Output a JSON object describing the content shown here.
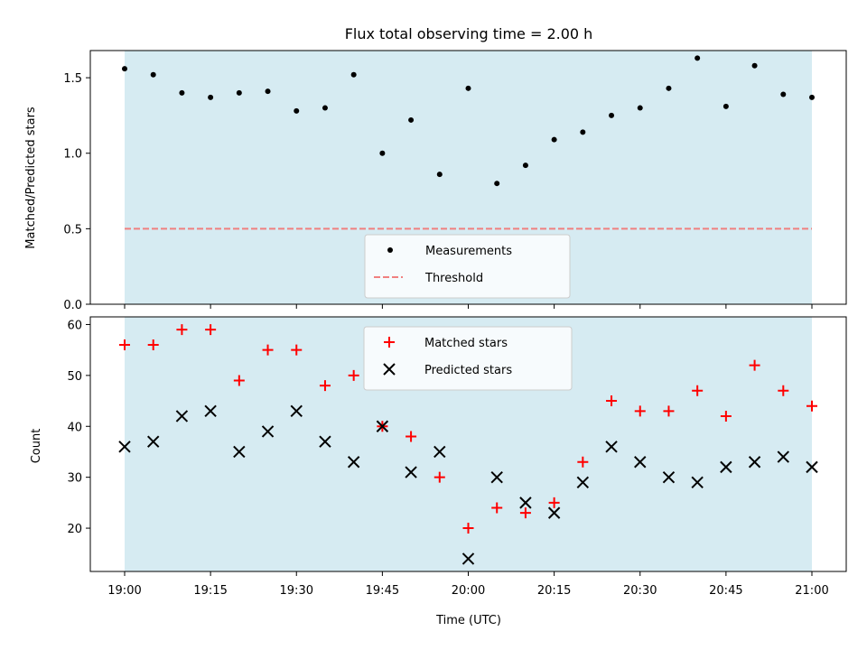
{
  "chart_data": [
    {
      "type": "scatter",
      "title": "Flux total observing time = 2.00 h",
      "xlabel": "",
      "ylabel": "Matched/Predicted stars",
      "ylim": [
        0.0,
        1.68
      ],
      "yticks": [
        "0.0",
        "0.5",
        "1.0",
        "1.5"
      ],
      "ytick_values": [
        0.0,
        0.5,
        1.0,
        1.5
      ],
      "x": [
        "19:00",
        "19:05",
        "19:10",
        "19:15",
        "19:20",
        "19:25",
        "19:30",
        "19:35",
        "19:40",
        "19:45",
        "19:50",
        "19:55",
        "20:00",
        "20:05",
        "20:10",
        "20:15",
        "20:20",
        "20:25",
        "20:30",
        "20:35",
        "20:40",
        "20:45",
        "20:50",
        "20:55",
        "21:00"
      ],
      "series": [
        {
          "name": "Measurements",
          "marker": "dot",
          "color": "#000000",
          "values": [
            1.56,
            1.52,
            1.4,
            1.37,
            1.4,
            1.41,
            1.28,
            1.3,
            1.52,
            1.0,
            1.22,
            0.86,
            1.43,
            0.8,
            0.92,
            1.09,
            1.14,
            1.25,
            1.3,
            1.43,
            1.63,
            1.31,
            1.58,
            1.39,
            1.37
          ]
        }
      ],
      "threshold": {
        "name": "Threshold",
        "value": 0.5,
        "color": "#f08080",
        "style": "dashed"
      },
      "shaded_band": {
        "from": "19:00",
        "to": "21:00",
        "color": "#add8e6"
      },
      "legend": "lower-center"
    },
    {
      "type": "scatter",
      "title": "",
      "xlabel": "Time (UTC)",
      "ylabel": "Count",
      "ylim": [
        11.5,
        61.5
      ],
      "yticks": [
        "20",
        "30",
        "40",
        "50",
        "60"
      ],
      "ytick_values": [
        20,
        30,
        40,
        50,
        60
      ],
      "xtick_labels": [
        "19:00",
        "19:15",
        "19:30",
        "19:45",
        "20:00",
        "20:15",
        "20:30",
        "20:45",
        "21:00"
      ],
      "x": [
        "19:00",
        "19:05",
        "19:10",
        "19:15",
        "19:20",
        "19:25",
        "19:30",
        "19:35",
        "19:40",
        "19:45",
        "19:50",
        "19:55",
        "20:00",
        "20:05",
        "20:10",
        "20:15",
        "20:20",
        "20:25",
        "20:30",
        "20:35",
        "20:40",
        "20:45",
        "20:50",
        "20:55",
        "21:00"
      ],
      "series": [
        {
          "name": "Matched stars",
          "marker": "plus",
          "color": "#ff0000",
          "values": [
            56,
            56,
            59,
            59,
            49,
            55,
            55,
            48,
            50,
            40,
            38,
            30,
            20,
            24,
            23,
            25,
            33,
            45,
            43,
            43,
            47,
            42,
            52,
            47,
            44
          ]
        },
        {
          "name": "Predicted stars",
          "marker": "x",
          "color": "#000000",
          "values": [
            36,
            37,
            42,
            43,
            35,
            39,
            43,
            37,
            33,
            40,
            31,
            35,
            14,
            30,
            25,
            23,
            29,
            36,
            33,
            30,
            29,
            32,
            33,
            34,
            32
          ]
        }
      ],
      "shaded_band": {
        "from": "19:00",
        "to": "21:00",
        "color": "#add8e6"
      },
      "legend": "upper-center"
    }
  ]
}
